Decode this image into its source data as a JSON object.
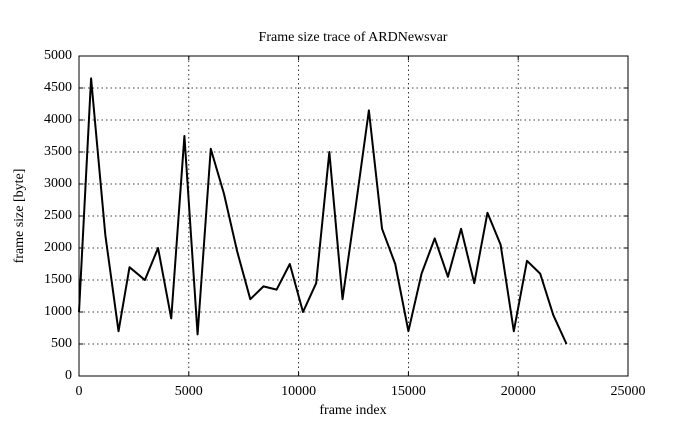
{
  "chart_data": {
    "type": "line",
    "title": "Frame size trace of ARDNewsvar",
    "xlabel": "frame index",
    "ylabel": "frame size [byte]",
    "x": [
      0,
      550,
      1200,
      1800,
      2300,
      3000,
      3600,
      4200,
      4800,
      5400,
      6000,
      6600,
      7200,
      7800,
      8400,
      9000,
      9600,
      10200,
      10800,
      11400,
      12000,
      12600,
      13200,
      13800,
      14400,
      15000,
      15600,
      16200,
      16800,
      17400,
      18000,
      18600,
      19200,
      19800,
      20400,
      21000,
      21600,
      22200
    ],
    "values": [
      1000,
      4650,
      2200,
      700,
      1700,
      1500,
      2000,
      900,
      3750,
      650,
      3550,
      2850,
      1950,
      1200,
      1400,
      1350,
      1750,
      1000,
      1450,
      3500,
      1200,
      2650,
      4150,
      2300,
      1750,
      700,
      1600,
      2150,
      1550,
      2300,
      1450,
      2550,
      2050,
      700,
      1800,
      1600,
      950,
      500
    ],
    "color": "#000000",
    "xlim": [
      0,
      25000
    ],
    "xticks": [
      0,
      5000,
      10000,
      15000,
      20000,
      25000
    ],
    "ylim": [
      0,
      5000
    ],
    "yticks": [
      0,
      500,
      1000,
      1500,
      2000,
      2500,
      3000,
      3500,
      4000,
      4500,
      5000
    ],
    "grid": true
  }
}
